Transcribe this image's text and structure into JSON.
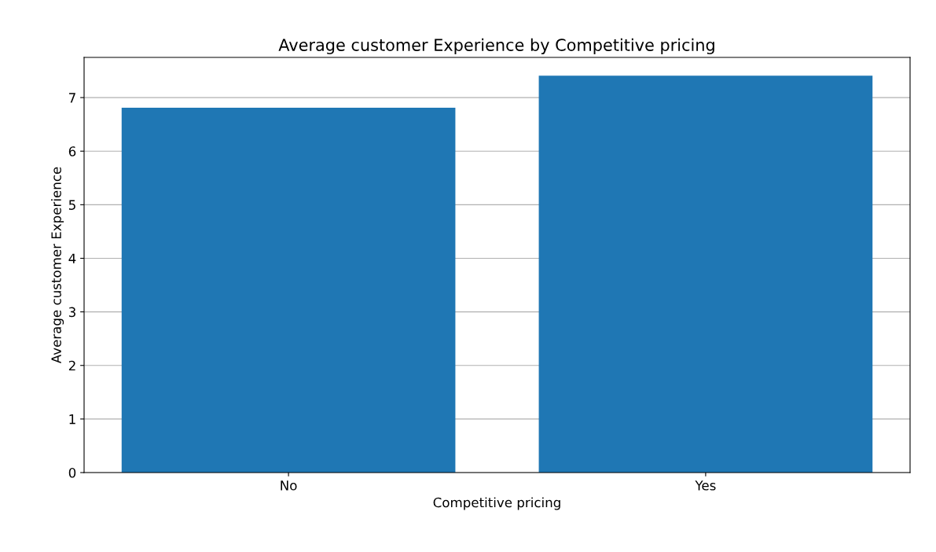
{
  "chart_data": {
    "type": "bar",
    "title": "Average customer Experience by Competitive pricing",
    "xlabel": "Competitive pricing",
    "ylabel": "Average customer Experience",
    "categories": [
      "No",
      "Yes"
    ],
    "values": [
      6.81,
      7.41
    ],
    "color": "#1f77b4",
    "ylim": [
      0,
      7.75
    ],
    "yticks": [
      0,
      1,
      2,
      3,
      4,
      5,
      6,
      7
    ],
    "grid": "y"
  }
}
